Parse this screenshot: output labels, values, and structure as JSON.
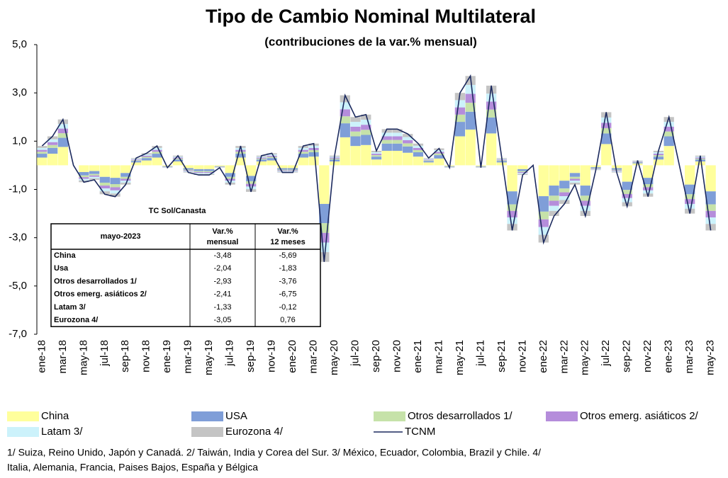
{
  "chart_data": {
    "type": "stacked-bar-line",
    "title": "Tipo de Cambio Nominal Multilateral",
    "subtitle": "(contribuciones de la var.% mensual)",
    "categories": [
      "ene-18",
      null,
      "mar-18",
      null,
      "may-18",
      null,
      "jul-18",
      null,
      "sep-18",
      null,
      "nov-18",
      null,
      "ene-19",
      null,
      "mar-19",
      null,
      "may-19",
      null,
      "jul-19",
      null,
      "sep-19",
      null,
      "nov-19",
      null,
      "ene-20",
      null,
      "mar-20",
      null,
      "may-20",
      null,
      "jul-20",
      null,
      "sep-20",
      null,
      "nov-20",
      null,
      "ene-21",
      null,
      "mar-21",
      null,
      "may-21",
      null,
      "jul-21",
      null,
      "sep-21",
      null,
      "nov-21",
      null,
      "ene-22",
      null,
      "mar-22",
      null,
      "may-22",
      null,
      "jul-22",
      null,
      "sep-22",
      null,
      "nov-22",
      null,
      "ene-23",
      null,
      "mar-23",
      null,
      "may-23"
    ],
    "ylim": [
      -7,
      5
    ],
    "yticks": [
      {
        "value": -7,
        "label": "-7,0"
      },
      {
        "value": -5,
        "label": "-5,0"
      },
      {
        "value": -3,
        "label": "-3,0"
      },
      {
        "value": -1,
        "label": "-1,0"
      },
      {
        "value": 1,
        "label": "1,0"
      },
      {
        "value": 3,
        "label": "3,0"
      },
      {
        "value": 5,
        "label": "5,0"
      }
    ],
    "series": [
      {
        "name": "China",
        "color": "#ffff9c",
        "values": [
          0.32,
          0.48,
          0.76,
          0,
          -0.28,
          -0.24,
          -0.48,
          -0.52,
          -0.32,
          0.12,
          0.2,
          0.32,
          -0.04,
          0.16,
          -0.12,
          -0.16,
          -0.16,
          -0.04,
          -0.32,
          0.32,
          -0.44,
          0.16,
          0.2,
          -0.12,
          -0.12,
          0.32,
          0.36,
          -1.6,
          0.16,
          1.16,
          0.8,
          0.84,
          0.24,
          0.6,
          0.6,
          0.52,
          0.36,
          0.12,
          0.28,
          -0.04,
          1.2,
          1.48,
          -0.04,
          1.32,
          0.12,
          -1.08,
          -0.16,
          0,
          -1.28,
          -0.84,
          -0.64,
          -0.32,
          -0.84,
          -0.08,
          0.88,
          -0.12,
          -0.68,
          0.08,
          -0.52,
          0.24,
          0.8,
          0,
          -0.8,
          0.16,
          -1.08
        ]
      },
      {
        "name": "USA",
        "color": "#7f9ed8",
        "values": [
          0.16,
          0.24,
          0.38,
          0,
          -0.14,
          -0.12,
          -0.24,
          -0.26,
          -0.16,
          0.06,
          0.1,
          0.16,
          -0.02,
          0.08,
          -0.06,
          -0.08,
          -0.08,
          -0.02,
          -0.16,
          0.16,
          -0.22,
          0.08,
          0.1,
          -0.06,
          -0.06,
          0.16,
          0.18,
          -0.8,
          0.08,
          0.58,
          0.4,
          0.42,
          0.12,
          0.3,
          0.3,
          0.26,
          0.18,
          0.06,
          0.14,
          -0.02,
          0.6,
          0.74,
          -0.02,
          0.66,
          0.06,
          -0.54,
          -0.08,
          0,
          -0.64,
          -0.42,
          -0.32,
          -0.16,
          -0.42,
          -0.04,
          0.44,
          -0.06,
          -0.34,
          0.04,
          -0.26,
          0.12,
          0.4,
          0,
          -0.4,
          0.08,
          -0.54
        ]
      },
      {
        "name": "Otros desarrollados 1/",
        "color": "#c6e2a9",
        "values": [
          0.08,
          0.12,
          0.19,
          0,
          -0.07,
          -0.06,
          -0.12,
          -0.13,
          -0.08,
          0.03,
          0.05,
          0.08,
          -0.01,
          0.04,
          -0.03,
          -0.04,
          -0.04,
          -0.01,
          -0.08,
          0.08,
          -0.11,
          0.04,
          0.05,
          -0.03,
          -0.03,
          0.08,
          0.09,
          -0.4,
          0.04,
          0.29,
          0.2,
          0.21,
          0.06,
          0.15,
          0.15,
          0.13,
          0.09,
          0.03,
          0.07,
          -0.01,
          0.3,
          0.37,
          -0.01,
          0.33,
          0.03,
          -0.27,
          -0.04,
          0,
          -0.32,
          -0.21,
          -0.16,
          -0.08,
          -0.21,
          -0.02,
          0.22,
          -0.03,
          -0.17,
          0.02,
          -0.13,
          0.06,
          0.2,
          0,
          -0.2,
          0.04,
          -0.27
        ]
      },
      {
        "name": "Otros emerg. asiáticos 2/",
        "color": "#b58ddb",
        "values": [
          0.08,
          0.12,
          0.19,
          0,
          -0.07,
          -0.06,
          -0.12,
          -0.13,
          -0.08,
          0.03,
          0.05,
          0.08,
          -0.01,
          0.04,
          -0.03,
          -0.04,
          -0.04,
          -0.01,
          -0.08,
          0.08,
          -0.11,
          0.04,
          0.05,
          -0.03,
          -0.03,
          0.08,
          0.09,
          -0.4,
          0.04,
          0.29,
          0.2,
          0.21,
          0.06,
          0.15,
          0.15,
          0.13,
          0.09,
          0.03,
          0.07,
          -0.01,
          0.3,
          0.37,
          -0.01,
          0.33,
          0.03,
          -0.27,
          -0.04,
          0,
          -0.32,
          -0.21,
          -0.16,
          -0.08,
          -0.21,
          -0.02,
          0.22,
          -0.03,
          -0.17,
          0.02,
          -0.13,
          0.06,
          0.2,
          0,
          -0.2,
          0.04,
          -0.27
        ]
      },
      {
        "name": "Latam 3/",
        "color": "#ccf2fb",
        "values": [
          0.08,
          0.12,
          0.19,
          0,
          -0.07,
          -0.06,
          -0.12,
          -0.13,
          -0.08,
          0.03,
          0.05,
          0.08,
          -0.01,
          0.04,
          -0.03,
          -0.04,
          -0.04,
          -0.01,
          -0.08,
          0.08,
          -0.11,
          0.04,
          0.05,
          -0.03,
          -0.03,
          0.08,
          0.09,
          -0.4,
          0.04,
          0.29,
          0.2,
          0.21,
          0.06,
          0.15,
          0.15,
          0.13,
          0.09,
          0.03,
          0.07,
          -0.01,
          0.3,
          0.37,
          -0.01,
          0.33,
          0.03,
          -0.27,
          -0.04,
          0,
          -0.32,
          -0.21,
          -0.16,
          -0.08,
          -0.21,
          -0.02,
          0.22,
          -0.03,
          -0.17,
          0.02,
          -0.13,
          0.06,
          0.2,
          0,
          -0.2,
          0.04,
          -0.27
        ]
      },
      {
        "name": "Eurozona 4/",
        "color": "#c4c4c4",
        "values": [
          0.08,
          0.12,
          0.19,
          0,
          -0.07,
          -0.06,
          -0.12,
          -0.13,
          -0.08,
          0.03,
          0.05,
          0.08,
          -0.01,
          0.04,
          -0.03,
          -0.04,
          -0.04,
          -0.01,
          -0.08,
          0.08,
          -0.11,
          0.04,
          0.05,
          -0.03,
          -0.03,
          0.08,
          0.09,
          -0.4,
          0.04,
          0.29,
          0.2,
          0.21,
          0.06,
          0.15,
          0.15,
          0.13,
          0.09,
          0.03,
          0.07,
          -0.01,
          0.3,
          0.37,
          -0.01,
          0.33,
          0.03,
          -0.27,
          -0.04,
          0,
          -0.32,
          -0.21,
          -0.16,
          -0.08,
          -0.21,
          -0.02,
          0.22,
          -0.03,
          -0.17,
          0.02,
          -0.13,
          0.06,
          0.2,
          0,
          -0.2,
          0.04,
          -0.27
        ]
      }
    ],
    "line": {
      "name": "TCNM",
      "color": "#1c2a5e",
      "values": [
        0.8,
        1.2,
        1.9,
        0.0,
        -0.7,
        -0.6,
        -1.2,
        -1.3,
        -0.8,
        0.3,
        0.5,
        0.8,
        -0.1,
        0.4,
        -0.3,
        -0.4,
        -0.4,
        -0.1,
        -0.8,
        0.8,
        -1.1,
        0.4,
        0.5,
        -0.3,
        -0.3,
        0.8,
        0.9,
        -4.0,
        0.4,
        2.9,
        2.0,
        2.1,
        0.6,
        1.5,
        1.5,
        1.3,
        0.9,
        0.3,
        0.7,
        -0.1,
        3.0,
        3.7,
        -0.1,
        3.3,
        0.3,
        -2.7,
        -0.4,
        0.0,
        -3.2,
        -2.1,
        -1.6,
        -0.8,
        -2.1,
        -0.2,
        2.2,
        -0.3,
        -1.7,
        0.2,
        -1.3,
        0.6,
        2.0,
        0.0,
        -2.0,
        0.4,
        -2.7
      ]
    },
    "table": {
      "title": "TC Sol/Canasta",
      "header": [
        "mayo-2023",
        "Var.% mensual",
        "Var.% 12 meses"
      ],
      "rows": [
        [
          "China",
          "-3,48",
          "-5,69"
        ],
        [
          "Usa",
          "-2,04",
          "-1,83"
        ],
        [
          "Otros desarrollados 1/",
          "-2,93",
          "-3,76"
        ],
        [
          "Otros emerg. asiáticos 2/",
          "-2,41",
          "-6,75"
        ],
        [
          "Latam 3/",
          "-1,33",
          "-0,12"
        ],
        [
          "Eurozona 4/",
          "-3,05",
          "0,76"
        ]
      ]
    },
    "footnote": [
      "1/ Suiza, Reino Unido, Japón y Canadá. 2/  Taiwán, India y Corea del Sur. 3/ México, Ecuador, Colombia, Brazil y Chile. 4/",
      "Italia, Alemania, Francia, Paises Bajos, España y Bélgica"
    ]
  }
}
